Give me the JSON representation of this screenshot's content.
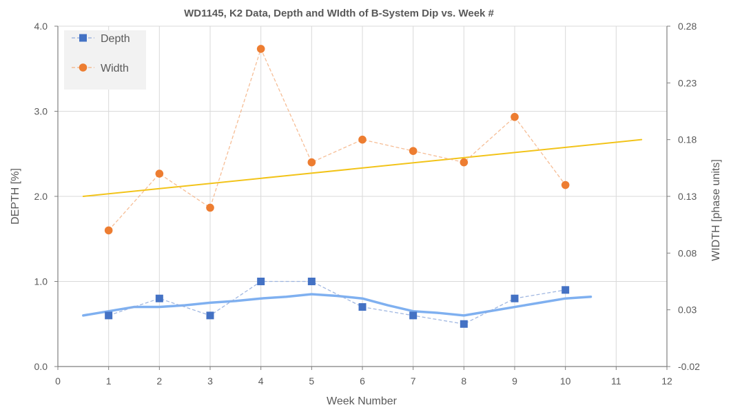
{
  "chart_data": {
    "type": "line",
    "title": "WD1145, K2 Data, Depth and WIdth of B-System Dip vs. Week #",
    "xlabel": "Week Number",
    "ylabel": "DEPTH [%]",
    "y2label": "WIDTH [phase units]",
    "xlim": [
      0,
      12
    ],
    "ylim": [
      0.0,
      4.0
    ],
    "y2lim": [
      -0.02,
      0.28
    ],
    "x_ticks": [
      0,
      1,
      2,
      3,
      4,
      5,
      6,
      7,
      8,
      9,
      10,
      11,
      12
    ],
    "y_ticks": [
      "0.0",
      "1.0",
      "2.0",
      "3.0",
      "4.0"
    ],
    "y2_ticks": [
      "-0.02",
      "0.03",
      "0.08",
      "0.13",
      "0.18",
      "0.23",
      "0.28"
    ],
    "grid": true,
    "legend_position": "top-left",
    "series": [
      {
        "name": "Depth",
        "axis": "left",
        "color": "#4472C4",
        "marker": "square",
        "x": [
          1,
          2,
          3,
          4,
          5,
          6,
          7,
          8,
          9,
          10
        ],
        "values": [
          0.6,
          0.8,
          0.6,
          1.0,
          1.0,
          0.7,
          0.6,
          0.5,
          0.8,
          0.9
        ]
      },
      {
        "name": "Width",
        "axis": "right",
        "color": "#ED7D31",
        "marker": "circle",
        "x": [
          1,
          2,
          3,
          4,
          5,
          6,
          7,
          8,
          9,
          10
        ],
        "values": [
          0.1,
          0.15,
          0.12,
          0.26,
          0.16,
          0.18,
          0.17,
          0.16,
          0.2,
          0.14
        ]
      }
    ],
    "trendlines": [
      {
        "of": "Depth",
        "kind": "moving-average",
        "color": "#7FB0F0",
        "x": [
          0.5,
          1.5,
          2,
          2.5,
          3,
          3.5,
          4,
          4.5,
          5,
          5.5,
          6,
          6.5,
          7,
          7.5,
          8,
          8.5,
          9,
          9.5,
          10,
          10.5
        ],
        "values": [
          0.6,
          0.7,
          0.7,
          0.72,
          0.75,
          0.77,
          0.8,
          0.82,
          0.85,
          0.83,
          0.8,
          0.72,
          0.65,
          0.63,
          0.6,
          0.65,
          0.7,
          0.75,
          0.8,
          0.82
        ]
      },
      {
        "of": "Width",
        "kind": "linear",
        "color": "#F2C318",
        "x": [
          0.5,
          11.5
        ],
        "values": [
          0.13,
          0.18
        ]
      }
    ]
  }
}
